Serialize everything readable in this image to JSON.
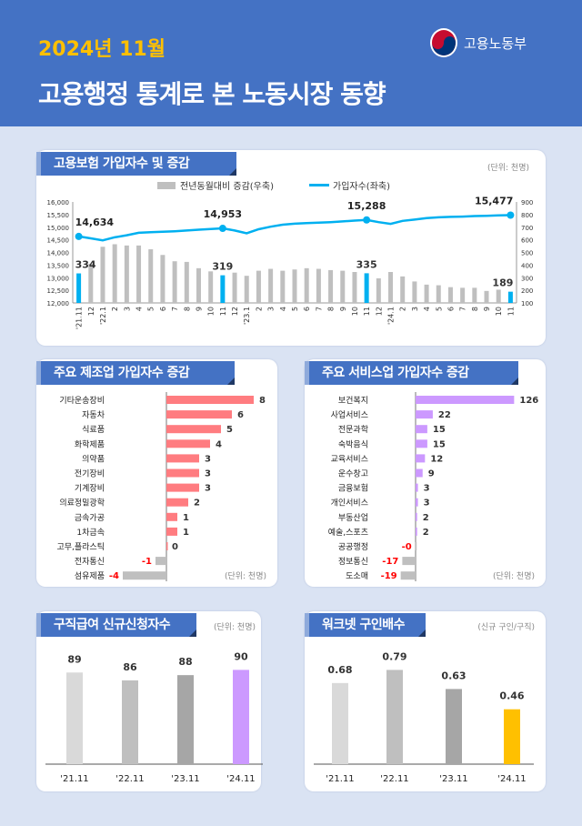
{
  "header": {
    "period": "2024년 11월",
    "title": "고용행정 통계로 본 노동시장 동향",
    "ministry": "고용노동부"
  },
  "colors": {
    "header": "#4472c4",
    "line": "#00b0f0",
    "bar": "#bfbfbf",
    "highlight": "#00b0f0",
    "mfg": "#ff7c80",
    "svc": "#cc99ff",
    "neg": "#bfbfbf",
    "negLabel": "#ff0000",
    "yellow": "#ffc000"
  },
  "chart_data": [
    {
      "type": "bar+line",
      "title": "고용보험 가입자수 및 증감",
      "unit": "(단위: 천명)",
      "legend": [
        "전년동월대비 증감(우축)",
        "가입자수(좌축)"
      ],
      "legend_position": "top",
      "categories": [
        "'21.11",
        "12",
        "'22.1",
        "2",
        "3",
        "4",
        "5",
        "6",
        "7",
        "8",
        "9",
        "10",
        "11",
        "12",
        "'23.1",
        "2",
        "3",
        "4",
        "5",
        "6",
        "7",
        "8",
        "9",
        "10",
        "11",
        "12",
        "'24.1",
        "2",
        "3",
        "4",
        "5",
        "6",
        "7",
        "8",
        "9",
        "10",
        "11"
      ],
      "left_ylim": [
        12000,
        16000
      ],
      "left_ticks": [
        "12,000",
        "12,500",
        "13,000",
        "13,500",
        "14,000",
        "14,500",
        "15,000",
        "15,500",
        "16,000"
      ],
      "right_ylim": [
        100,
        900
      ],
      "right_ticks": [
        "100",
        "200",
        "300",
        "400",
        "500",
        "600",
        "700",
        "800",
        "900"
      ],
      "bar_values": [
        334,
        410,
        545,
        565,
        555,
        555,
        525,
        480,
        430,
        425,
        375,
        350,
        319,
        340,
        315,
        355,
        370,
        355,
        365,
        375,
        370,
        360,
        355,
        345,
        335,
        295,
        345,
        310,
        270,
        245,
        240,
        225,
        220,
        220,
        195,
        205,
        189
      ],
      "line_values": [
        14634,
        14560,
        14480,
        14600,
        14680,
        14780,
        14800,
        14820,
        14840,
        14870,
        14900,
        14930,
        14953,
        14870,
        14760,
        14920,
        15020,
        15100,
        15140,
        15160,
        15180,
        15200,
        15230,
        15260,
        15288,
        15200,
        15130,
        15250,
        15300,
        15360,
        15390,
        15410,
        15420,
        15440,
        15450,
        15470,
        15477
      ],
      "highlight_index": [
        0,
        12,
        24,
        36
      ],
      "bar_labels": [
        "334",
        "319",
        "335",
        "189"
      ],
      "line_labels": [
        "14,634",
        "14,953",
        "15,288",
        "15,477"
      ]
    },
    {
      "type": "bar",
      "orientation": "horizontal",
      "title": "주요 제조업 가입자수 증감",
      "unit": "(단위: 천명)",
      "categories": [
        "기타운송장비",
        "자동차",
        "식료품",
        "화학제품",
        "의약품",
        "전기장비",
        "기계장비",
        "의료정밀광학",
        "금속가공",
        "1차금속",
        "고무,플라스틱",
        "전자통신",
        "섬유제품"
      ],
      "values": [
        8,
        6,
        5,
        4,
        3,
        3,
        3,
        2,
        1,
        1,
        0,
        -1,
        -4
      ],
      "labels": [
        "8",
        "6",
        "5",
        "4",
        "3",
        "3",
        "3",
        "2",
        "1",
        "1",
        "0",
        "-1",
        "-4"
      ]
    },
    {
      "type": "bar",
      "orientation": "horizontal",
      "title": "주요 서비스업 가입자수 증감",
      "unit": "(단위: 천명)",
      "categories": [
        "보건복지",
        "사업서비스",
        "전문과학",
        "숙박음식",
        "교육서비스",
        "운수창고",
        "금융보험",
        "개인서비스",
        "부동산업",
        "예술,스포츠",
        "공공행정",
        "정보통신",
        "도소매"
      ],
      "values": [
        126,
        22,
        15,
        15,
        12,
        9,
        3,
        3,
        2,
        2,
        -0.3,
        -17,
        -19
      ],
      "labels": [
        "126",
        "22",
        "15",
        "15",
        "12",
        "9",
        "3",
        "3",
        "2",
        "2",
        "-0",
        "-17",
        "-19"
      ]
    },
    {
      "type": "bar",
      "title": "구직급여 신규신청자수",
      "unit": "(단위: 천명)",
      "categories": [
        "'21.11",
        "'22.11",
        "'23.11",
        "'24.11"
      ],
      "values": [
        89,
        86,
        88,
        90
      ],
      "labels": [
        "89",
        "86",
        "88",
        "90"
      ],
      "ylim": [
        54,
        95
      ],
      "colors": [
        "#d9d9d9",
        "#bfbfbf",
        "#a6a6a6",
        "#cc99ff"
      ]
    },
    {
      "type": "bar",
      "title": "워크넷 구인배수",
      "unit": "(신규 구인/구직)",
      "categories": [
        "'21.11",
        "'22.11",
        "'23.11",
        "'24.11"
      ],
      "values": [
        0.68,
        0.79,
        0.63,
        0.46
      ],
      "labels": [
        "0.68",
        "0.79",
        "0.63",
        "0.46"
      ],
      "ylim": [
        0,
        0.9
      ],
      "colors": [
        "#d9d9d9",
        "#bfbfbf",
        "#a6a6a6",
        "#ffc000"
      ]
    }
  ]
}
